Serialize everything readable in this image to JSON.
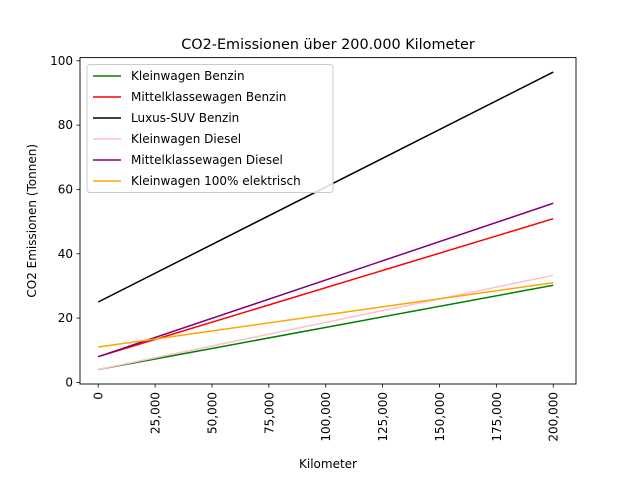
{
  "chart_data": {
    "type": "line",
    "title": "CO2-Emissionen über 200.000 Kilometer",
    "xlabel": "Kilometer",
    "ylabel": "CO2 Emissionen (Tonnen)",
    "xlim": [
      -8000,
      210000
    ],
    "ylim": [
      -0.5,
      101
    ],
    "x_ticks": [
      0,
      25000,
      50000,
      75000,
      100000,
      125000,
      150000,
      175000,
      200000
    ],
    "x_tick_labels": [
      "0",
      "25,000",
      "50,000",
      "75,000",
      "100,000",
      "125,000",
      "150,000",
      "175,000",
      "200,000"
    ],
    "y_ticks": [
      0,
      20,
      40,
      60,
      80,
      100
    ],
    "y_tick_labels": [
      "0",
      "20",
      "40",
      "60",
      "80",
      "100"
    ],
    "grid": false,
    "legend_position": "top-left",
    "series": [
      {
        "name": "Kleinwagen Benzin",
        "color": "#008000",
        "x": [
          0,
          200000
        ],
        "values": [
          4,
          30.2
        ]
      },
      {
        "name": "Mittelklassewagen Benzin",
        "color": "#ff0000",
        "x": [
          0,
          200000
        ],
        "values": [
          8,
          50.9
        ]
      },
      {
        "name": "Luxus-SUV Benzin",
        "color": "#000000",
        "x": [
          0,
          200000
        ],
        "values": [
          25,
          96.5
        ]
      },
      {
        "name": "Kleinwagen Diesel",
        "color": "#ffc0cb",
        "x": [
          0,
          200000
        ],
        "values": [
          4,
          33.3
        ]
      },
      {
        "name": "Mittelklassewagen Diesel",
        "color": "#800080",
        "x": [
          0,
          200000
        ],
        "values": [
          8,
          55.7
        ]
      },
      {
        "name": "Kleinwagen 100% elektrisch",
        "color": "#ffa500",
        "x": [
          0,
          200000
        ],
        "values": [
          11,
          31
        ]
      }
    ]
  }
}
